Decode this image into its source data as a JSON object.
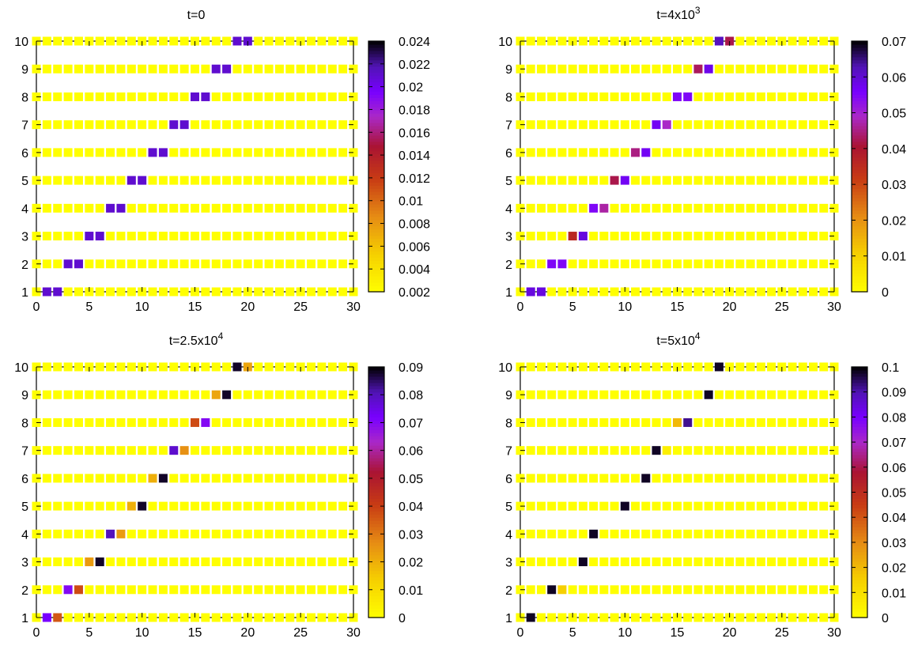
{
  "chart_data": [
    {
      "type": "heatmap",
      "title": "t=0",
      "title_base": "t=0",
      "title_exp": "",
      "xlim": [
        0,
        30
      ],
      "ylim": [
        1,
        10
      ],
      "xticks": [
        0,
        5,
        10,
        15,
        20,
        25,
        30
      ],
      "yticks": [
        1,
        2,
        3,
        4,
        5,
        6,
        7,
        8,
        9,
        10
      ],
      "x_cells": 30,
      "rows": 10,
      "background_value": 0.002,
      "colorbar": {
        "min": 0.002,
        "max": 0.024,
        "ticks": [
          0.002,
          0.004,
          0.006,
          0.008,
          0.01,
          0.012,
          0.014,
          0.016,
          0.018,
          0.02,
          0.022,
          0.024
        ],
        "tick_labels": [
          "0.002",
          "0.004",
          "0.006",
          "0.008",
          "0.01",
          "0.012",
          "0.014",
          "0.016",
          "0.018",
          "0.02",
          "0.022",
          "0.024"
        ]
      },
      "highlights": [
        {
          "row": 1,
          "x": 1,
          "value": 0.021
        },
        {
          "row": 1,
          "x": 2,
          "value": 0.021
        },
        {
          "row": 2,
          "x": 3,
          "value": 0.021
        },
        {
          "row": 2,
          "x": 4,
          "value": 0.021
        },
        {
          "row": 3,
          "x": 5,
          "value": 0.021
        },
        {
          "row": 3,
          "x": 6,
          "value": 0.021
        },
        {
          "row": 4,
          "x": 7,
          "value": 0.021
        },
        {
          "row": 4,
          "x": 8,
          "value": 0.021
        },
        {
          "row": 5,
          "x": 9,
          "value": 0.021
        },
        {
          "row": 5,
          "x": 10,
          "value": 0.021
        },
        {
          "row": 6,
          "x": 11,
          "value": 0.021
        },
        {
          "row": 6,
          "x": 12,
          "value": 0.021
        },
        {
          "row": 7,
          "x": 13,
          "value": 0.021
        },
        {
          "row": 7,
          "x": 14,
          "value": 0.021
        },
        {
          "row": 8,
          "x": 15,
          "value": 0.021
        },
        {
          "row": 8,
          "x": 16,
          "value": 0.021
        },
        {
          "row": 9,
          "x": 17,
          "value": 0.021
        },
        {
          "row": 9,
          "x": 18,
          "value": 0.021
        },
        {
          "row": 10,
          "x": 19,
          "value": 0.021
        },
        {
          "row": 10,
          "x": 20,
          "value": 0.021
        }
      ]
    },
    {
      "type": "heatmap",
      "title": "t=4x10^3",
      "title_base": "t=4x10",
      "title_exp": "3",
      "xlim": [
        0,
        30
      ],
      "ylim": [
        1,
        10
      ],
      "xticks": [
        0,
        5,
        10,
        15,
        20,
        25,
        30
      ],
      "yticks": [
        1,
        2,
        3,
        4,
        5,
        6,
        7,
        8,
        9,
        10
      ],
      "x_cells": 30,
      "rows": 10,
      "background_value": 0,
      "colorbar": {
        "min": 0,
        "max": 0.07,
        "ticks": [
          0,
          0.01,
          0.02,
          0.03,
          0.04,
          0.05,
          0.06,
          0.07
        ],
        "tick_labels": [
          "0",
          "0.01",
          "0.02",
          "0.03",
          "0.04",
          "0.05",
          "0.06",
          "0.07"
        ]
      },
      "highlights": [
        {
          "row": 1,
          "x": 1,
          "value": 0.059
        },
        {
          "row": 1,
          "x": 2,
          "value": 0.059
        },
        {
          "row": 2,
          "x": 3,
          "value": 0.055
        },
        {
          "row": 2,
          "x": 4,
          "value": 0.055
        },
        {
          "row": 3,
          "x": 5,
          "value": 0.036
        },
        {
          "row": 3,
          "x": 6,
          "value": 0.059
        },
        {
          "row": 4,
          "x": 7,
          "value": 0.055
        },
        {
          "row": 4,
          "x": 8,
          "value": 0.047
        },
        {
          "row": 5,
          "x": 9,
          "value": 0.042
        },
        {
          "row": 5,
          "x": 10,
          "value": 0.057
        },
        {
          "row": 6,
          "x": 11,
          "value": 0.045
        },
        {
          "row": 6,
          "x": 12,
          "value": 0.057
        },
        {
          "row": 7,
          "x": 13,
          "value": 0.057
        },
        {
          "row": 7,
          "x": 14,
          "value": 0.049
        },
        {
          "row": 8,
          "x": 15,
          "value": 0.055
        },
        {
          "row": 8,
          "x": 16,
          "value": 0.055
        },
        {
          "row": 9,
          "x": 17,
          "value": 0.043
        },
        {
          "row": 9,
          "x": 18,
          "value": 0.058
        },
        {
          "row": 10,
          "x": 19,
          "value": 0.062
        },
        {
          "row": 10,
          "x": 20,
          "value": 0.042
        }
      ]
    },
    {
      "type": "heatmap",
      "title": "t=2.5x10^4",
      "title_base": "t=2.5x10",
      "title_exp": "4",
      "xlim": [
        0,
        30
      ],
      "ylim": [
        1,
        10
      ],
      "xticks": [
        0,
        5,
        10,
        15,
        20,
        25,
        30
      ],
      "yticks": [
        1,
        2,
        3,
        4,
        5,
        6,
        7,
        8,
        9,
        10
      ],
      "x_cells": 30,
      "rows": 10,
      "background_value": 0,
      "colorbar": {
        "min": 0,
        "max": 0.09,
        "ticks": [
          0,
          0.01,
          0.02,
          0.03,
          0.04,
          0.05,
          0.06,
          0.07,
          0.08,
          0.09
        ],
        "tick_labels": [
          "0",
          "0.01",
          "0.02",
          "0.03",
          "0.04",
          "0.05",
          "0.06",
          "0.07",
          "0.08",
          "0.09"
        ]
      },
      "highlights": [
        {
          "row": 1,
          "x": 1,
          "value": 0.072
        },
        {
          "row": 1,
          "x": 2,
          "value": 0.036
        },
        {
          "row": 2,
          "x": 3,
          "value": 0.07
        },
        {
          "row": 2,
          "x": 4,
          "value": 0.038
        },
        {
          "row": 3,
          "x": 5,
          "value": 0.024
        },
        {
          "row": 3,
          "x": 6,
          "value": 0.088
        },
        {
          "row": 4,
          "x": 7,
          "value": 0.08
        },
        {
          "row": 4,
          "x": 8,
          "value": 0.024
        },
        {
          "row": 5,
          "x": 9,
          "value": 0.02
        },
        {
          "row": 5,
          "x": 10,
          "value": 0.088
        },
        {
          "row": 6,
          "x": 11,
          "value": 0.02
        },
        {
          "row": 6,
          "x": 12,
          "value": 0.088
        },
        {
          "row": 7,
          "x": 13,
          "value": 0.078
        },
        {
          "row": 7,
          "x": 14,
          "value": 0.026
        },
        {
          "row": 8,
          "x": 15,
          "value": 0.038
        },
        {
          "row": 8,
          "x": 16,
          "value": 0.07
        },
        {
          "row": 9,
          "x": 17,
          "value": 0.022
        },
        {
          "row": 9,
          "x": 18,
          "value": 0.088
        },
        {
          "row": 10,
          "x": 19,
          "value": 0.088
        },
        {
          "row": 10,
          "x": 20,
          "value": 0.022
        }
      ]
    },
    {
      "type": "heatmap",
      "title": "t=5x10^4",
      "title_base": "t=5x10",
      "title_exp": "4",
      "xlim": [
        0,
        30
      ],
      "ylim": [
        1,
        10
      ],
      "xticks": [
        0,
        5,
        10,
        15,
        20,
        25,
        30
      ],
      "yticks": [
        1,
        2,
        3,
        4,
        5,
        6,
        7,
        8,
        9,
        10
      ],
      "x_cells": 30,
      "rows": 10,
      "background_value": 0,
      "colorbar": {
        "min": 0,
        "max": 0.1,
        "ticks": [
          0,
          0.01,
          0.02,
          0.03,
          0.04,
          0.05,
          0.06,
          0.07,
          0.08,
          0.09,
          0.1
        ],
        "tick_labels": [
          "0",
          "0.01",
          "0.02",
          "0.03",
          "0.04",
          "0.05",
          "0.06",
          "0.07",
          "0.08",
          "0.09",
          "0.1"
        ]
      },
      "highlights": [
        {
          "row": 1,
          "x": 1,
          "value": 0.098
        },
        {
          "row": 2,
          "x": 3,
          "value": 0.098
        },
        {
          "row": 2,
          "x": 4,
          "value": 0.015
        },
        {
          "row": 3,
          "x": 6,
          "value": 0.098
        },
        {
          "row": 4,
          "x": 7,
          "value": 0.098
        },
        {
          "row": 5,
          "x": 10,
          "value": 0.098
        },
        {
          "row": 6,
          "x": 12,
          "value": 0.098
        },
        {
          "row": 7,
          "x": 13,
          "value": 0.098
        },
        {
          "row": 7,
          "x": 14,
          "value": 0.005
        },
        {
          "row": 8,
          "x": 15,
          "value": 0.02
        },
        {
          "row": 8,
          "x": 16,
          "value": 0.092
        },
        {
          "row": 9,
          "x": 18,
          "value": 0.098
        },
        {
          "row": 10,
          "x": 19,
          "value": 0.098
        }
      ]
    }
  ]
}
